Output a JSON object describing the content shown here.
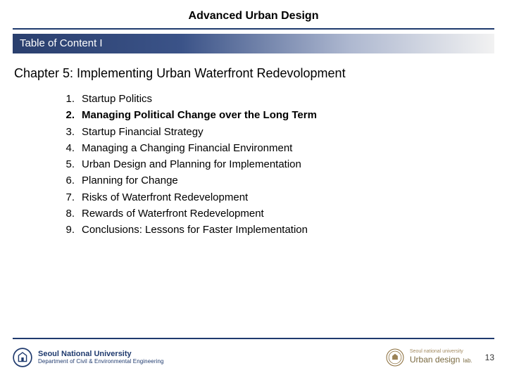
{
  "header": {
    "title": "Advanced Urban Design",
    "underline_color": "#1f3a6e"
  },
  "section_bar": {
    "label": "Table of Content I",
    "gradient_from": "#2a3f6e",
    "gradient_to": "#f2f2f2",
    "text_color": "#ffffff"
  },
  "chapter": {
    "title": "Chapter 5: Implementing Urban Waterfront Redevolopment"
  },
  "toc": {
    "items": [
      {
        "num": "1.",
        "text": "Startup Politics",
        "bold": false
      },
      {
        "num": "2.",
        "text": "Managing Political Change over the Long Term",
        "bold": true
      },
      {
        "num": "3.",
        "text": "Startup Financial Strategy",
        "bold": false
      },
      {
        "num": "4.",
        "text": "Managing a Changing Financial Environment",
        "bold": false
      },
      {
        "num": "5.",
        "text": "Urban Design and Planning for Implementation",
        "bold": false
      },
      {
        "num": "6.",
        "text": "Planning for Change",
        "bold": false
      },
      {
        "num": "7.",
        "text": "Risks of Waterfront Redevelopment",
        "bold": false
      },
      {
        "num": "8.",
        "text": "Rewards of Waterfront Redevelopment",
        "bold": false
      },
      {
        "num": "9.",
        "text": "Conclusions: Lessons for Faster Implementation",
        "bold": false
      }
    ],
    "font_size": 15,
    "line_height": 1.55
  },
  "footer": {
    "line_color": "#1f3a6e",
    "left": {
      "logo_color": "#1f3a6e",
      "name": "Seoul National University",
      "dept": "Department of Civil & Environmental Engineering"
    },
    "right": {
      "seal_color": "#8a6d3b",
      "sub": "Seoul national university",
      "name": "Urban design",
      "suffix": "lab."
    },
    "page_number": "13"
  },
  "colors": {
    "background": "#ffffff",
    "text": "#000000",
    "accent": "#1f3a6e"
  }
}
